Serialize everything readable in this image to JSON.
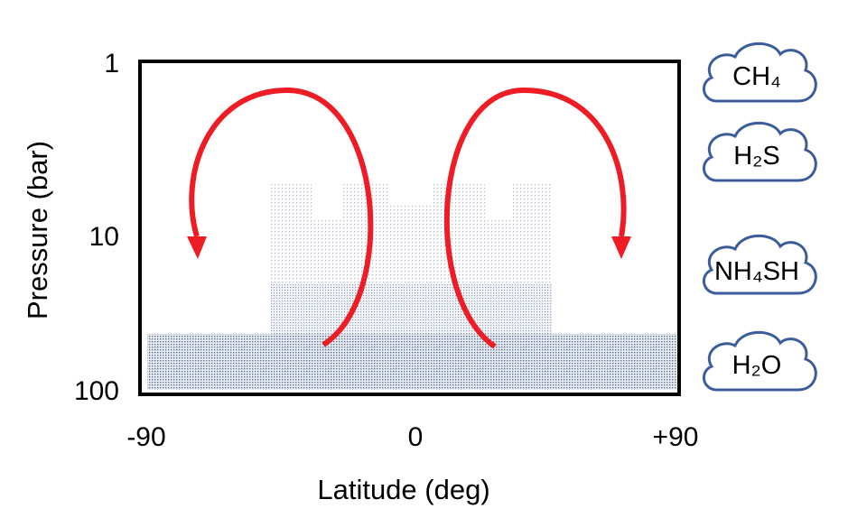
{
  "x_axis": {
    "title": "Latitude (deg)",
    "ticks": [
      "-90",
      "0",
      "+90"
    ]
  },
  "y_axis": {
    "title": "Pressure (bar)",
    "ticks": [
      "1",
      "10",
      "100"
    ]
  },
  "clouds": [
    "CH₄",
    "H₂S",
    "NH₄SH",
    "H₂O"
  ]
}
